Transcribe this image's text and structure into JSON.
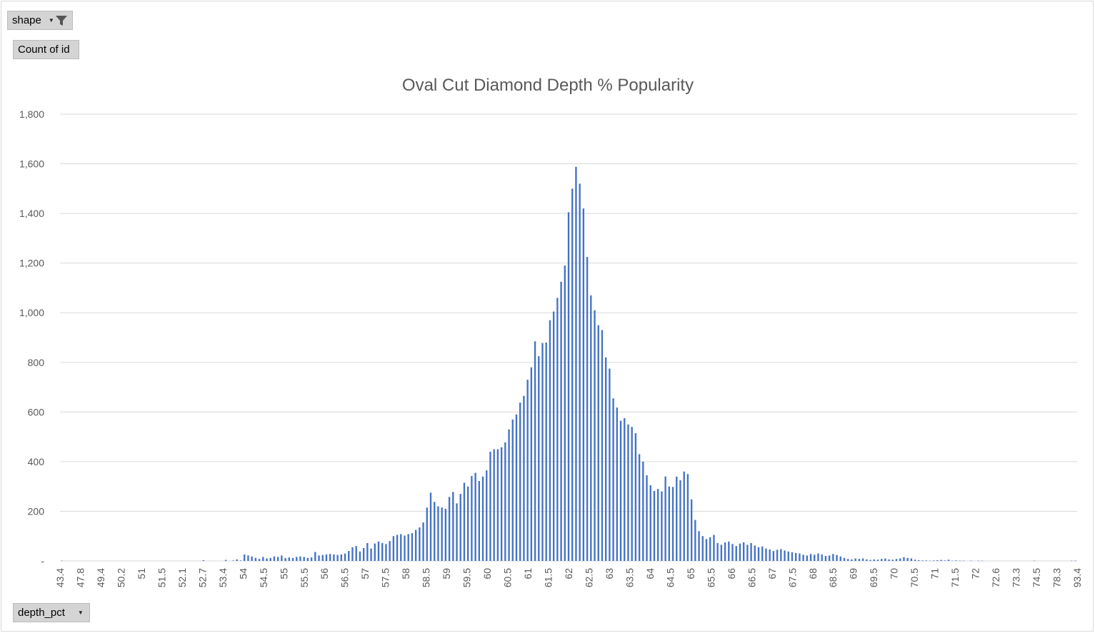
{
  "filter_button": {
    "label": "shape",
    "icon": "filter-funnel-icon"
  },
  "values_button": {
    "label": "Count of id"
  },
  "axis_button": {
    "label": "depth_pct",
    "icon": "dropdown-arrow-icon"
  },
  "colors": {
    "bar": "#4472c4",
    "grid": "#d9d9d9",
    "text": "#595959"
  },
  "chart_data": {
    "type": "bar",
    "title": "Oval Cut Diamond Depth % Popularity",
    "xlabel": "",
    "ylabel": "",
    "ylim": [
      0,
      1800
    ],
    "yticks": [
      0,
      200,
      400,
      600,
      800,
      1000,
      1200,
      1400,
      1600,
      1800
    ],
    "ytick_labels": [
      "-",
      "200",
      "400",
      "600",
      "800",
      "1,000",
      "1,200",
      "1,400",
      "1,600",
      "1,800"
    ],
    "xtick_labels": [
      "43.4",
      "47.8",
      "49.4",
      "50.2",
      "51",
      "51.5",
      "52.1",
      "52.7",
      "53.4",
      "54",
      "54.5",
      "55",
      "55.5",
      "56",
      "56.5",
      "57",
      "57.5",
      "58",
      "58.5",
      "59",
      "59.5",
      "60",
      "60.5",
      "61",
      "61.5",
      "62",
      "62.5",
      "63",
      "63.5",
      "64",
      "64.5",
      "65",
      "65.5",
      "66",
      "66.5",
      "67",
      "67.5",
      "68",
      "68.5",
      "69",
      "69.5",
      "70",
      "70.5",
      "71",
      "71.5",
      "72",
      "72.6",
      "73.3",
      "74.5",
      "78.3",
      "93.4"
    ],
    "grid": true,
    "legend": "none",
    "values": [
      1,
      0,
      0,
      0,
      0,
      0,
      0,
      0,
      0,
      0,
      0,
      0,
      0,
      0,
      0,
      0,
      0,
      0,
      0,
      0,
      0,
      0,
      0,
      0,
      0,
      0,
      0,
      0,
      0,
      0,
      0,
      0,
      0,
      0,
      0,
      0,
      0,
      0,
      3,
      0,
      0,
      0,
      0,
      0,
      4,
      0,
      2,
      6,
      2,
      26,
      22,
      18,
      12,
      8,
      16,
      10,
      12,
      18,
      16,
      22,
      12,
      14,
      12,
      16,
      18,
      16,
      12,
      14,
      36,
      22,
      24,
      26,
      28,
      26,
      24,
      26,
      30,
      40,
      55,
      60,
      38,
      52,
      72,
      50,
      70,
      78,
      72,
      68,
      80,
      100,
      105,
      108,
      102,
      108,
      112,
      125,
      135,
      155,
      215,
      275,
      238,
      220,
      215,
      210,
      258,
      278,
      232,
      270,
      315,
      300,
      342,
      355,
      322,
      340,
      365,
      440,
      450,
      450,
      458,
      478,
      530,
      570,
      590,
      638,
      665,
      730,
      780,
      885,
      825,
      878,
      880,
      970,
      1005,
      1060,
      1125,
      1190,
      1405,
      1500,
      1588,
      1520,
      1420,
      1225,
      1070,
      1010,
      950,
      930,
      820,
      775,
      655,
      618,
      565,
      575,
      550,
      540,
      515,
      430,
      400,
      345,
      305,
      282,
      290,
      280,
      340,
      300,
      298,
      340,
      325,
      360,
      350,
      248,
      165,
      120,
      100,
      88,
      95,
      105,
      72,
      65,
      75,
      78,
      68,
      60,
      70,
      75,
      65,
      72,
      62,
      55,
      58,
      50,
      46,
      40,
      45,
      48,
      42,
      38,
      35,
      32,
      30,
      25,
      22,
      28,
      25,
      30,
      26,
      20,
      22,
      28,
      24,
      18,
      12,
      8,
      6,
      10,
      8,
      10,
      6,
      4,
      6,
      5,
      8,
      10,
      6,
      5,
      8,
      10,
      15,
      12,
      10,
      5,
      3,
      2,
      2,
      1,
      2,
      3,
      4,
      2,
      5,
      1,
      2,
      1,
      1,
      0,
      1,
      0,
      1,
      1,
      0,
      0,
      0,
      0,
      0,
      0,
      0,
      0,
      0,
      0,
      0,
      0,
      0,
      1,
      0,
      0,
      0,
      0,
      0,
      0,
      0,
      0,
      0,
      1,
      1
    ]
  }
}
